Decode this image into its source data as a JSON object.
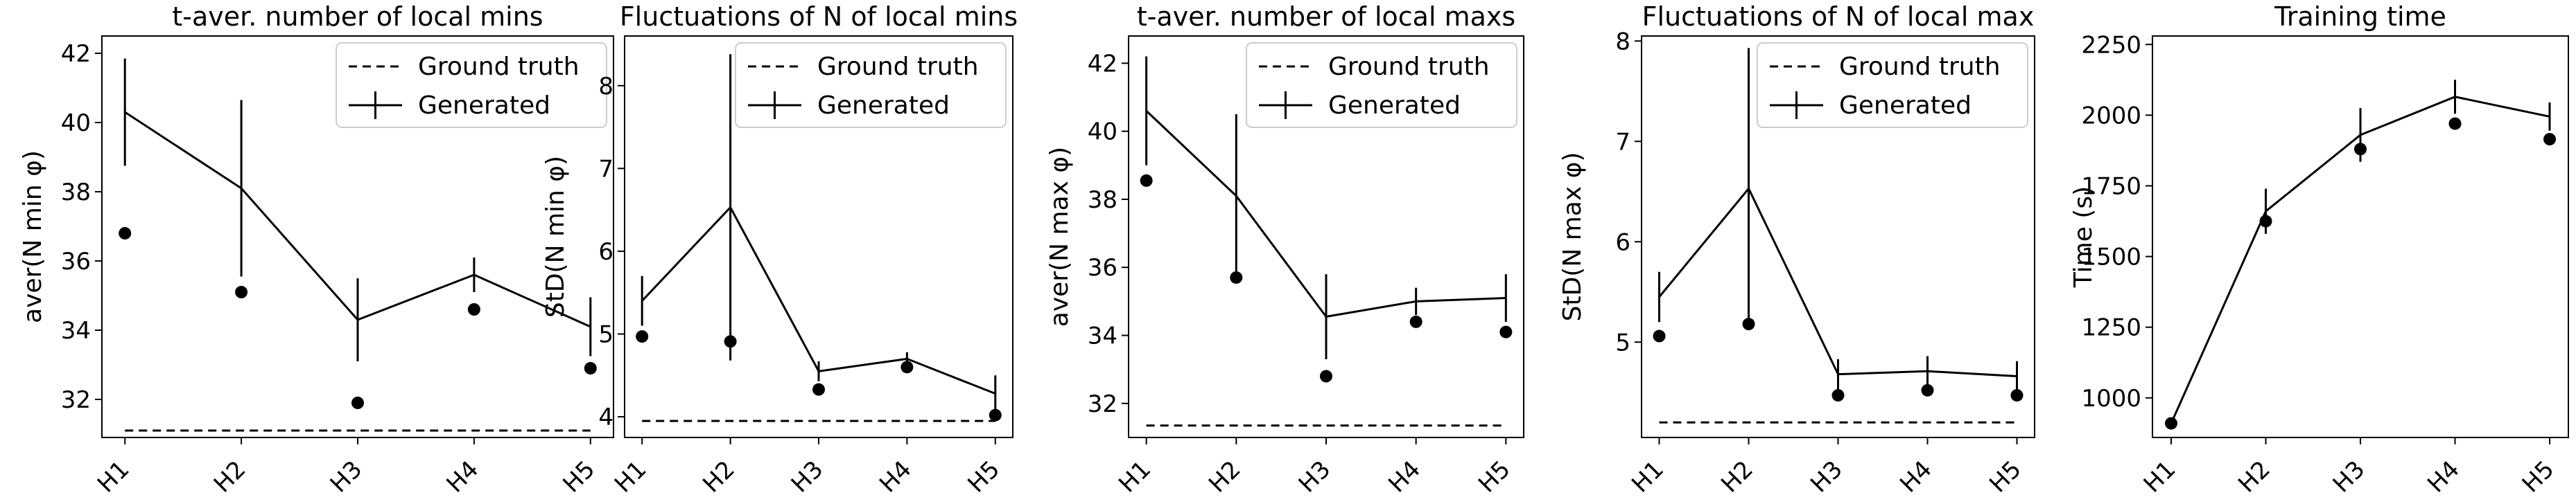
{
  "chart_data": [
    {
      "type": "line",
      "title": "t-aver. number of local mins",
      "xlabel": "",
      "ylabel": "aver(N min φ)",
      "categories": [
        "H1",
        "H2",
        "H3",
        "H4",
        "H5"
      ],
      "ylim": [
        30.9,
        42.5
      ],
      "yticks": [
        32,
        34,
        36,
        38,
        40,
        42
      ],
      "legend": {
        "position": "top-right",
        "entries": [
          "Ground truth",
          "Generated"
        ]
      },
      "series": [
        {
          "name": "Ground truth",
          "style": "dashed",
          "values": [
            31.1,
            31.1,
            31.1,
            31.1,
            31.1
          ]
        },
        {
          "name": "Generated",
          "style": "errorbar",
          "values": [
            40.3,
            38.1,
            34.3,
            35.6,
            34.1
          ],
          "errors": [
            1.55,
            2.55,
            1.2,
            0.5,
            0.85
          ]
        },
        {
          "name": "",
          "style": "points",
          "values": [
            36.8,
            35.1,
            31.9,
            34.6,
            32.9
          ]
        }
      ]
    },
    {
      "type": "line",
      "title": "Fluctuations of N of local mins",
      "xlabel": "",
      "ylabel": "StD(N min φ)",
      "categories": [
        "H1",
        "H2",
        "H3",
        "H4",
        "H5"
      ],
      "ylim": [
        3.75,
        8.6
      ],
      "yticks": [
        4,
        5,
        6,
        7,
        8
      ],
      "legend": {
        "position": "top-right",
        "entries": [
          "Ground truth",
          "Generated"
        ]
      },
      "series": [
        {
          "name": "Ground truth",
          "style": "dashed",
          "values": [
            3.95,
            3.95,
            3.95,
            3.95,
            3.95
          ]
        },
        {
          "name": "Generated",
          "style": "errorbar",
          "values": [
            5.4,
            6.53,
            4.55,
            4.7,
            4.28
          ],
          "errors": [
            0.3,
            1.85,
            0.12,
            0.08,
            0.22
          ]
        },
        {
          "name": "",
          "style": "points",
          "values": [
            4.97,
            4.91,
            4.33,
            4.6,
            4.02
          ]
        }
      ]
    },
    {
      "type": "line",
      "title": "t-aver. number of local maxs",
      "xlabel": "",
      "ylabel": "aver(N max φ)",
      "categories": [
        "H1",
        "H2",
        "H3",
        "H4",
        "H5"
      ],
      "ylim": [
        31.0,
        42.8
      ],
      "yticks": [
        32,
        34,
        36,
        38,
        40,
        42
      ],
      "legend": {
        "position": "top-right",
        "entries": [
          "Ground truth",
          "Generated"
        ]
      },
      "series": [
        {
          "name": "Ground truth",
          "style": "dashed",
          "values": [
            31.35,
            31.35,
            31.35,
            31.35,
            31.35
          ]
        },
        {
          "name": "Generated",
          "style": "errorbar",
          "values": [
            40.6,
            38.1,
            34.55,
            35.0,
            35.1
          ],
          "errors": [
            1.6,
            2.4,
            1.25,
            0.4,
            0.7
          ]
        },
        {
          "name": "",
          "style": "points",
          "values": [
            38.55,
            35.7,
            32.8,
            34.4,
            34.1
          ]
        }
      ]
    },
    {
      "type": "line",
      "title": "Fluctuations of N of local max",
      "xlabel": "",
      "ylabel": "StD(N max φ)",
      "categories": [
        "H1",
        "H2",
        "H3",
        "H4",
        "H5"
      ],
      "ylim": [
        4.05,
        8.05
      ],
      "yticks": [
        5,
        6,
        7,
        8
      ],
      "legend": {
        "position": "top-right",
        "entries": [
          "Ground truth",
          "Generated"
        ]
      },
      "series": [
        {
          "name": "Ground truth",
          "style": "dashed",
          "values": [
            4.2,
            4.2,
            4.2,
            4.2,
            4.2
          ]
        },
        {
          "name": "Generated",
          "style": "errorbar",
          "values": [
            5.45,
            6.53,
            4.68,
            4.71,
            4.66
          ],
          "errors": [
            0.25,
            1.4,
            0.15,
            0.15,
            0.15
          ]
        },
        {
          "name": "",
          "style": "points",
          "values": [
            5.06,
            5.18,
            4.47,
            4.52,
            4.47
          ]
        }
      ]
    },
    {
      "type": "line",
      "title": "Training time",
      "xlabel": "",
      "ylabel": "Time (s)",
      "categories": [
        "H1",
        "H2",
        "H3",
        "H4",
        "H5"
      ],
      "ylim": [
        860,
        2280
      ],
      "yticks": [
        1000,
        1250,
        1500,
        1750,
        2000,
        2250
      ],
      "legend": null,
      "series": [
        {
          "name": "",
          "style": "errorbar",
          "values": [
            910,
            1660,
            1930,
            2065,
            1995
          ],
          "errors": [
            0,
            80,
            95,
            60,
            50
          ]
        },
        {
          "name": "",
          "style": "points",
          "values": [
            910,
            1625,
            1880,
            1970,
            1915
          ]
        }
      ]
    }
  ]
}
